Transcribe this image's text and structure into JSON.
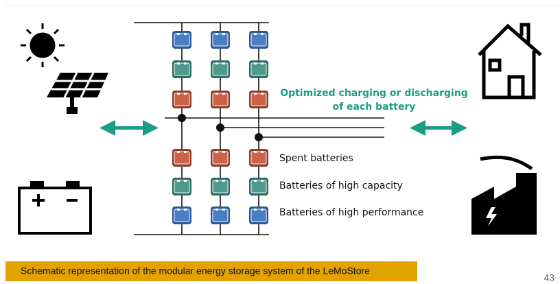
{
  "diagram": {
    "annotation": [
      "Optimized charging or discharging",
      "of each battery"
    ],
    "legend": [
      "Spent batteries",
      "Batteries of high capacity",
      "Batteries of high performance"
    ],
    "caption": "Schematic representation of the modular energy storage system of the LeMoStore",
    "page_number": "43"
  }
}
